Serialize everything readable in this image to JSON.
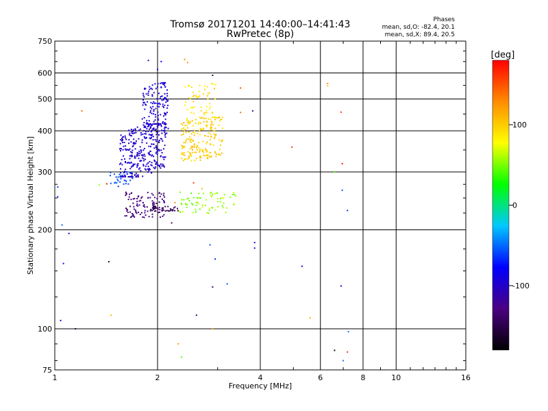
{
  "chart_data": {
    "type": "scatter",
    "title": "Tromsø 20171201 14:40:00–14:41:43",
    "subtitle": "RwPretec (8p)",
    "xlabel": "Frequency [MHz]",
    "ylabel": "Stationary phase Virtual Height [km]",
    "x_scale": "log",
    "y_scale": "log",
    "xlim": [
      1,
      16
    ],
    "ylim": [
      75,
      750
    ],
    "x_ticks": [
      1,
      2,
      4,
      6,
      8,
      10,
      16
    ],
    "x_tick_labels": [
      "1",
      "2",
      "4",
      "6",
      "8",
      "10",
      "16"
    ],
    "y_ticks": [
      75,
      100,
      200,
      300,
      400,
      500,
      600,
      750
    ],
    "y_tick_labels": [
      "75",
      "100",
      "200",
      "300",
      "400",
      "500",
      "600",
      "750"
    ],
    "grid": true,
    "phases": {
      "title": "Phases",
      "line_o": "mean, sd,O: -82.4, 20.1",
      "line_x": "mean, sd,X: 89.4, 20.5"
    },
    "colorbar": {
      "label": "[deg]",
      "range": [
        -180,
        180
      ],
      "ticks": [
        100,
        0,
        -100
      ],
      "tick_labels": [
        "100",
        "0",
        "-100"
      ],
      "colors": [
        "#000000",
        "#4b0082",
        "#0000ff",
        "#00c8ff",
        "#00ff00",
        "#ffff00",
        "#ff8c00",
        "#ff0000"
      ]
    },
    "clusters": [
      {
        "n": 320,
        "fmin": 1.55,
        "fmax": 2.12,
        "hmin": 290,
        "hmax": 420,
        "phase": -100,
        "sd": 12,
        "slope": 0.4
      },
      {
        "n": 160,
        "fmin": 1.8,
        "fmax": 2.15,
        "hmin": 380,
        "hmax": 560,
        "phase": -95,
        "sd": 10,
        "slope": 0.2
      },
      {
        "n": 200,
        "fmin": 2.35,
        "fmax": 3.1,
        "hmin": 325,
        "hmax": 440,
        "phase": 100,
        "sd": 12,
        "slope": 0.25
      },
      {
        "n": 60,
        "fmin": 2.4,
        "fmax": 3.0,
        "hmin": 420,
        "hmax": 560,
        "phase": 90,
        "sd": 15,
        "slope": 0
      },
      {
        "n": 110,
        "fmin": 1.6,
        "fmax": 2.1,
        "hmin": 218,
        "hmax": 262,
        "phase": -130,
        "sd": 8,
        "slope": 0
      },
      {
        "n": 40,
        "fmin": 1.9,
        "fmax": 2.3,
        "hmin": 228,
        "hmax": 236,
        "phase": -145,
        "sd": 6,
        "slope": 0
      },
      {
        "n": 70,
        "fmin": 2.3,
        "fmax": 3.4,
        "hmin": 225,
        "hmax": 262,
        "phase": 55,
        "sd": 15,
        "slope": 0
      },
      {
        "n": 30,
        "fmin": 1.45,
        "fmax": 1.7,
        "hmin": 270,
        "hmax": 300,
        "phase": -60,
        "sd": 10,
        "slope": 0
      }
    ],
    "points": [
      [
        1.02,
        270,
        -60
      ],
      [
        1.02,
        252,
        -70
      ],
      [
        1.05,
        207,
        -55
      ],
      [
        1.06,
        158,
        -75
      ],
      [
        1.04,
        106,
        -80
      ],
      [
        1.1,
        195,
        -90
      ],
      [
        1.15,
        100,
        -150
      ],
      [
        1.2,
        460,
        140
      ],
      [
        1.35,
        274,
        60
      ],
      [
        1.42,
        276,
        170
      ],
      [
        1.44,
        160,
        -165
      ],
      [
        1.46,
        110,
        110
      ],
      [
        1.88,
        655,
        -105
      ],
      [
        2.05,
        650,
        -80
      ],
      [
        2.0,
        615,
        -100
      ],
      [
        2.4,
        660,
        130
      ],
      [
        2.45,
        645,
        130
      ],
      [
        2.55,
        278,
        160
      ],
      [
        2.7,
        267,
        110
      ],
      [
        2.82,
        225,
        55
      ],
      [
        2.9,
        590,
        -150
      ],
      [
        3.5,
        540,
        150
      ],
      [
        3.5,
        455,
        140
      ],
      [
        3.8,
        460,
        -110
      ],
      [
        3.85,
        176,
        -100
      ],
      [
        3.85,
        183,
        -90
      ],
      [
        4.95,
        357,
        160
      ],
      [
        5.3,
        155,
        -90
      ],
      [
        5.6,
        108,
        110
      ],
      [
        6.3,
        557,
        130
      ],
      [
        6.3,
        548,
        100
      ],
      [
        6.9,
        456,
        160
      ],
      [
        6.95,
        318,
        170
      ],
      [
        6.95,
        264,
        -60
      ],
      [
        7.2,
        229,
        -65
      ],
      [
        6.6,
        300,
        40
      ],
      [
        6.9,
        135,
        -95
      ],
      [
        7.0,
        80,
        -50
      ],
      [
        7.2,
        85,
        160
      ],
      [
        6.6,
        86,
        -175
      ],
      [
        7.25,
        98,
        -50
      ],
      [
        2.3,
        90,
        120
      ],
      [
        2.35,
        82,
        40
      ],
      [
        2.6,
        110,
        -140
      ],
      [
        2.9,
        100,
        120
      ],
      [
        2.9,
        134,
        -130
      ],
      [
        2.95,
        163,
        -70
      ],
      [
        3.2,
        137,
        -55
      ],
      [
        2.85,
        180,
        -60
      ],
      [
        2.2,
        210,
        -140
      ],
      [
        2.25,
        242,
        130
      ],
      [
        3.0,
        244,
        60
      ]
    ]
  }
}
